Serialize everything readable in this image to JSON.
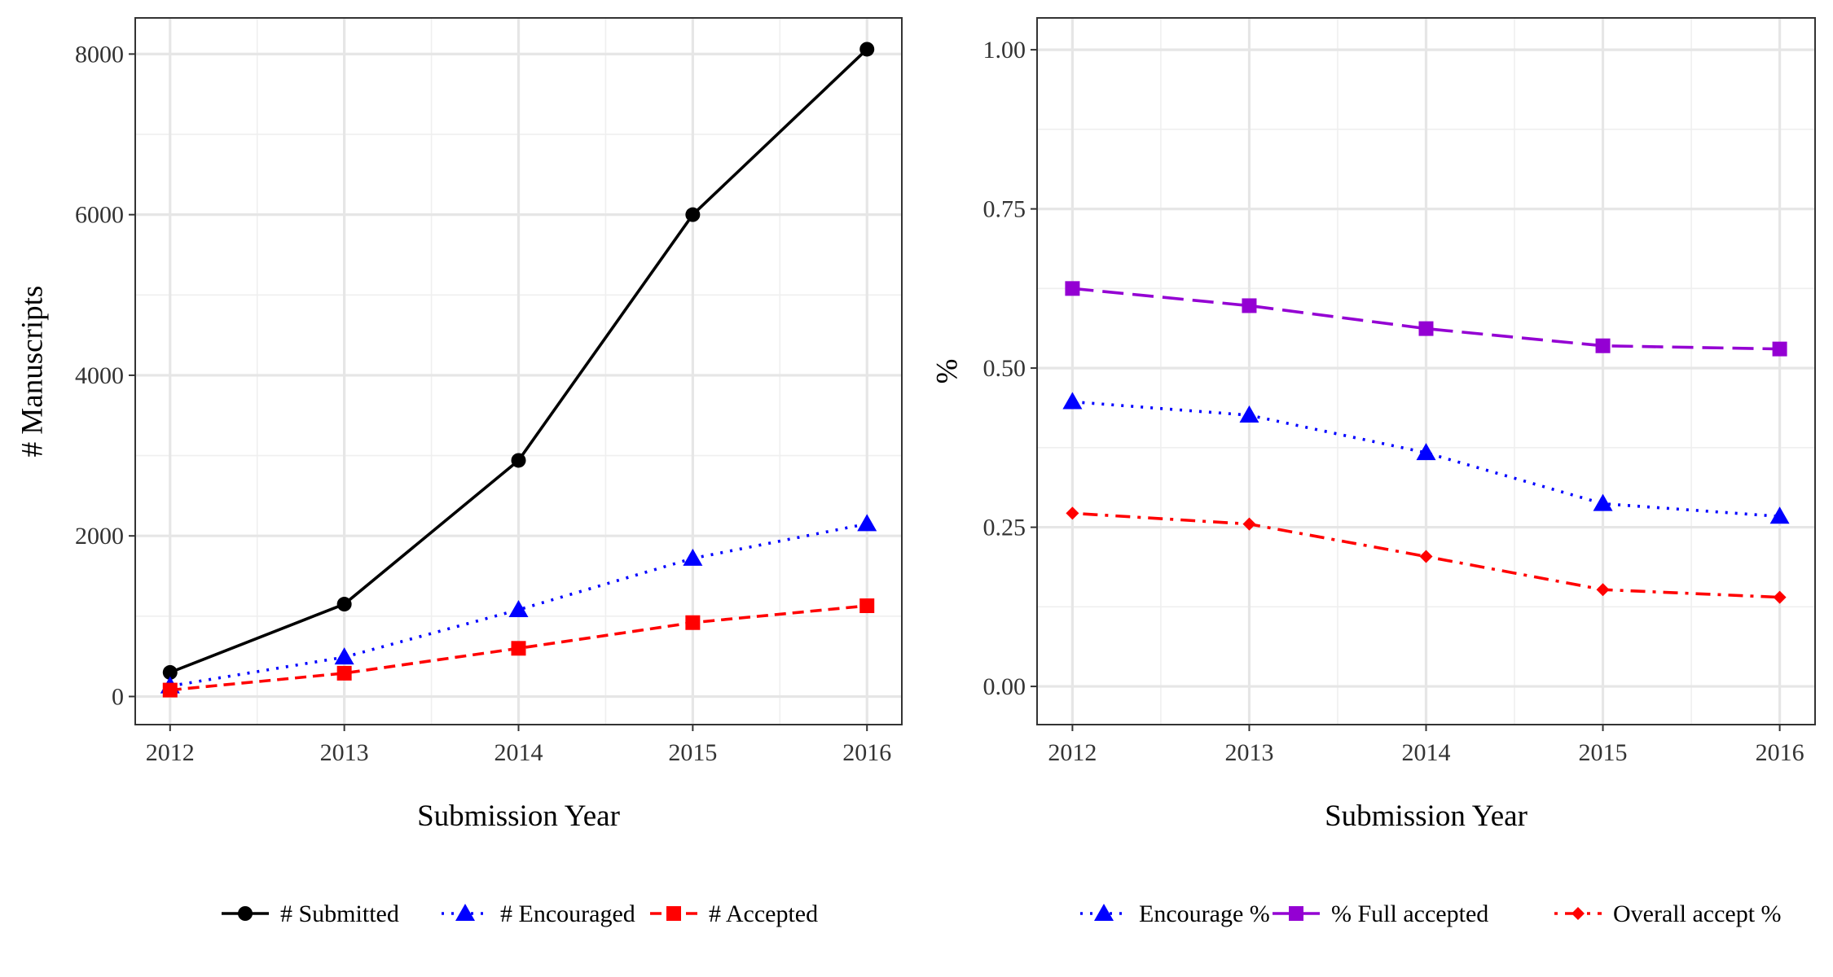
{
  "chart_data": [
    {
      "type": "line",
      "xlabel": "Submission Year",
      "ylabel": "# Manuscripts",
      "x": [
        2012,
        2013,
        2014,
        2015,
        2016
      ],
      "xlim": [
        2011.8,
        2016.2
      ],
      "ylim": [
        -350,
        8450
      ],
      "xticks": [
        "2012",
        "2013",
        "2014",
        "2015",
        "2016"
      ],
      "yticks": [
        "0",
        "2000",
        "4000",
        "6000",
        "8000"
      ],
      "grid": true,
      "legend_position": "bottom",
      "series": [
        {
          "name": "# Submitted",
          "values": [
            300,
            1150,
            2940,
            6000,
            8060
          ],
          "color": "#000000",
          "dash": "solid",
          "marker": "circle"
        },
        {
          "name": "# Encouraged",
          "values": [
            130,
            490,
            1080,
            1720,
            2150
          ],
          "color": "#0000ff",
          "dash": "dotted",
          "marker": "triangle"
        },
        {
          "name": "# Accepted",
          "values": [
            80,
            290,
            600,
            920,
            1130
          ],
          "color": "#ff0000",
          "dash": "dashed",
          "marker": "square"
        }
      ]
    },
    {
      "type": "line",
      "xlabel": "Submission Year",
      "ylabel": "%",
      "x": [
        2012,
        2013,
        2014,
        2015,
        2016
      ],
      "xlim": [
        2011.8,
        2016.2
      ],
      "ylim": [
        -0.06,
        1.05
      ],
      "xticks": [
        "2012",
        "2013",
        "2014",
        "2015",
        "2016"
      ],
      "yticks": [
        "0.00",
        "0.25",
        "0.50",
        "0.75",
        "1.00"
      ],
      "grid": true,
      "legend_position": "bottom",
      "series": [
        {
          "name": "Encourage %",
          "values": [
            0.447,
            0.426,
            0.367,
            0.287,
            0.267
          ],
          "color": "#0000ff",
          "dash": "dotted",
          "marker": "triangle"
        },
        {
          "name": "% Full accepted",
          "values": [
            0.625,
            0.598,
            0.562,
            0.535,
            0.53
          ],
          "color": "#9400d3",
          "dash": "longdash",
          "marker": "square"
        },
        {
          "name": "Overall accept %",
          "values": [
            0.272,
            0.255,
            0.204,
            0.152,
            0.14
          ],
          "color": "#ff0000",
          "dash": "dotdash",
          "marker": "diamond"
        }
      ]
    }
  ]
}
